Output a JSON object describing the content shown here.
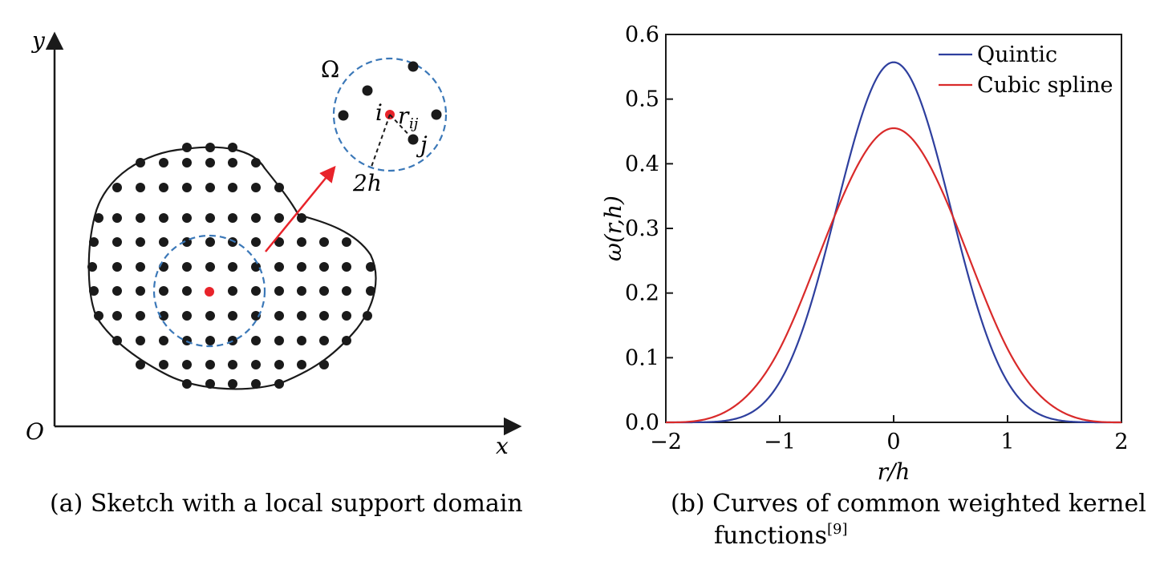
{
  "left_panel": {
    "axis_y": "y",
    "axis_x": "x",
    "origin": "O",
    "domain_symbol": "Ω",
    "label_i": "i",
    "label_j": "j",
    "label_rij": "r",
    "label_rij_sub": "ij",
    "label_2h": "2h",
    "caption": "(a) Sketch with a local support domain",
    "colors": {
      "particle": "#1a1a1a",
      "center": "#e8232a",
      "support": "#3b78b8",
      "arrow": "#e8232a"
    }
  },
  "right_panel": {
    "caption_line1": "(b) Curves of common weighted kernel",
    "caption_line2": "functions",
    "caption_ref": "[9]",
    "chart_data": {
      "type": "line",
      "xlabel": "r/h",
      "ylabel": "ω(r,h)",
      "xlim": [
        -2,
        2
      ],
      "ylim": [
        0,
        0.6
      ],
      "xticks": [
        "−2",
        "−1",
        "0",
        "1",
        "2"
      ],
      "yticks": [
        "0.0",
        "0.1",
        "0.2",
        "0.3",
        "0.4",
        "0.5",
        "0.6"
      ],
      "legend_position": "top-right",
      "grid": false,
      "series": [
        {
          "name": "Quintic",
          "color": "#2e3f9e",
          "peak": 0.557
        },
        {
          "name": "Cubic spline",
          "color": "#d92a2a",
          "peak": 0.455
        }
      ]
    }
  }
}
